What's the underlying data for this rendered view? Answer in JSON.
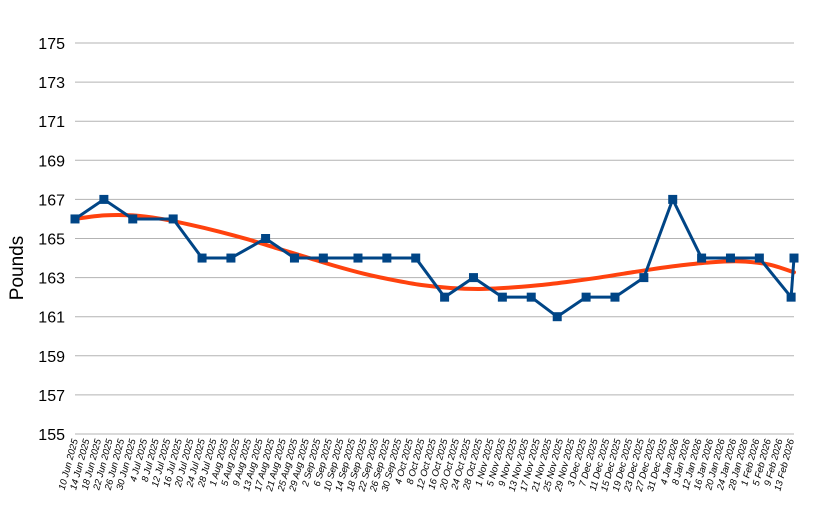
{
  "chart_data": {
    "type": "line",
    "title": "",
    "xlabel": "",
    "ylabel": "Pounds",
    "ylim": [
      155,
      175
    ],
    "yticks": [
      155,
      157,
      159,
      161,
      163,
      165,
      167,
      169,
      171,
      173,
      175
    ],
    "grid": "horizontal",
    "xticks": [
      "10 Jun 2025",
      "14 Jun 2025",
      "18 Jun 2025",
      "22 Jun 2025",
      "26 Jun 2025",
      "30 Jun 2025",
      "4 Jul 2025",
      "8 Jul 2025",
      "12 Jul 2025",
      "16 Jul 2025",
      "20 Jul 2025",
      "24 Jul 2025",
      "28 Jul 2025",
      "1 Aug 2025",
      "5 Aug 2025",
      "9 Aug 2025",
      "13 Aug 2025",
      "17 Aug 2025",
      "21 Aug 2025",
      "25 Aug 2025",
      "29 Aug 2025",
      "2 Sep 2025",
      "6 Sep 2025",
      "10 Sep 2025",
      "14 Sep 2025",
      "18 Sep 2025",
      "22 Sep 2025",
      "26 Sep 2025",
      "30 Sep 2025",
      "4 Oct 2025",
      "8 Oct 2025",
      "12 Oct 2025",
      "16 Oct 2025",
      "20 Oct 2025",
      "24 Oct 2025",
      "28 Oct 2025",
      "1 Nov 2025",
      "5 Nov 2025",
      "9 Nov 2025",
      "13 Nov 2025",
      "17 Nov 2025",
      "21 Nov 2025",
      "25 Nov 2025",
      "29 Nov 2025",
      "3 Dec 2025",
      "7 Dec 2025",
      "11 Dec 2025",
      "15 Dec 2025",
      "19 Dec 2025",
      "23 Dec 2025",
      "27 Dec 2025",
      "31 Dec 2025",
      "4 Jan 2026",
      "8 Jan 2026",
      "12 Jan 2026",
      "16 Jan 2026",
      "20 Jan 2026",
      "24 Jan 2026",
      "28 Jan 2026",
      "1 Feb 2026",
      "5 Feb 2026",
      "9 Feb 2026",
      "13 Feb 2026"
    ],
    "series": [
      {
        "color": "#004586",
        "points": [
          {
            "x": "2025-06-10",
            "y": 166
          },
          {
            "x": "2025-06-20",
            "y": 167
          },
          {
            "x": "2025-06-30",
            "y": 166
          },
          {
            "x": "2025-07-14",
            "y": 166
          },
          {
            "x": "2025-07-24",
            "y": 164
          },
          {
            "x": "2025-08-03",
            "y": 164
          },
          {
            "x": "2025-08-15",
            "y": 165
          },
          {
            "x": "2025-08-25",
            "y": 164
          },
          {
            "x": "2025-09-04",
            "y": 164
          },
          {
            "x": "2025-09-16",
            "y": 164
          },
          {
            "x": "2025-09-26",
            "y": 164
          },
          {
            "x": "2025-10-06",
            "y": 164
          },
          {
            "x": "2025-10-16",
            "y": 162
          },
          {
            "x": "2025-10-26",
            "y": 163
          },
          {
            "x": "2025-11-05",
            "y": 162
          },
          {
            "x": "2025-11-15",
            "y": 162
          },
          {
            "x": "2025-11-24",
            "y": 161
          },
          {
            "x": "2025-12-04",
            "y": 162
          },
          {
            "x": "2025-12-14",
            "y": 162
          },
          {
            "x": "2025-12-24",
            "y": 163
          },
          {
            "x": "2026-01-03",
            "y": 167
          },
          {
            "x": "2026-01-13",
            "y": 164
          },
          {
            "x": "2026-01-23",
            "y": 164
          },
          {
            "x": "2026-02-02",
            "y": 164
          },
          {
            "x": "2026-02-13",
            "y": 162
          },
          {
            "x": "2026-02-14",
            "y": 164
          }
        ]
      },
      {
        "color": "#ff420e",
        "type": "trend",
        "points": [
          {
            "x": "2025-06-10",
            "y": 166.0
          },
          {
            "x": "2025-06-20",
            "y": 166.18
          },
          {
            "x": "2025-06-30",
            "y": 166.18
          },
          {
            "x": "2025-07-10",
            "y": 166.0
          },
          {
            "x": "2025-07-20",
            "y": 165.7
          },
          {
            "x": "2025-07-30",
            "y": 165.35
          },
          {
            "x": "2025-08-09",
            "y": 164.95
          },
          {
            "x": "2025-08-19",
            "y": 164.5
          },
          {
            "x": "2025-08-29",
            "y": 164.05
          },
          {
            "x": "2025-09-08",
            "y": 163.6
          },
          {
            "x": "2025-09-18",
            "y": 163.2
          },
          {
            "x": "2025-09-28",
            "y": 162.88
          },
          {
            "x": "2025-10-08",
            "y": 162.62
          },
          {
            "x": "2025-10-18",
            "y": 162.47
          },
          {
            "x": "2025-10-28",
            "y": 162.42
          },
          {
            "x": "2025-11-07",
            "y": 162.48
          },
          {
            "x": "2025-11-17",
            "y": 162.6
          },
          {
            "x": "2025-11-27",
            "y": 162.77
          },
          {
            "x": "2025-12-07",
            "y": 162.97
          },
          {
            "x": "2025-12-17",
            "y": 163.2
          },
          {
            "x": "2025-12-27",
            "y": 163.43
          },
          {
            "x": "2026-01-06",
            "y": 163.63
          },
          {
            "x": "2026-01-16",
            "y": 163.78
          },
          {
            "x": "2026-01-26",
            "y": 163.83
          },
          {
            "x": "2026-02-05",
            "y": 163.68
          },
          {
            "x": "2026-02-14",
            "y": 163.27
          }
        ]
      }
    ]
  }
}
